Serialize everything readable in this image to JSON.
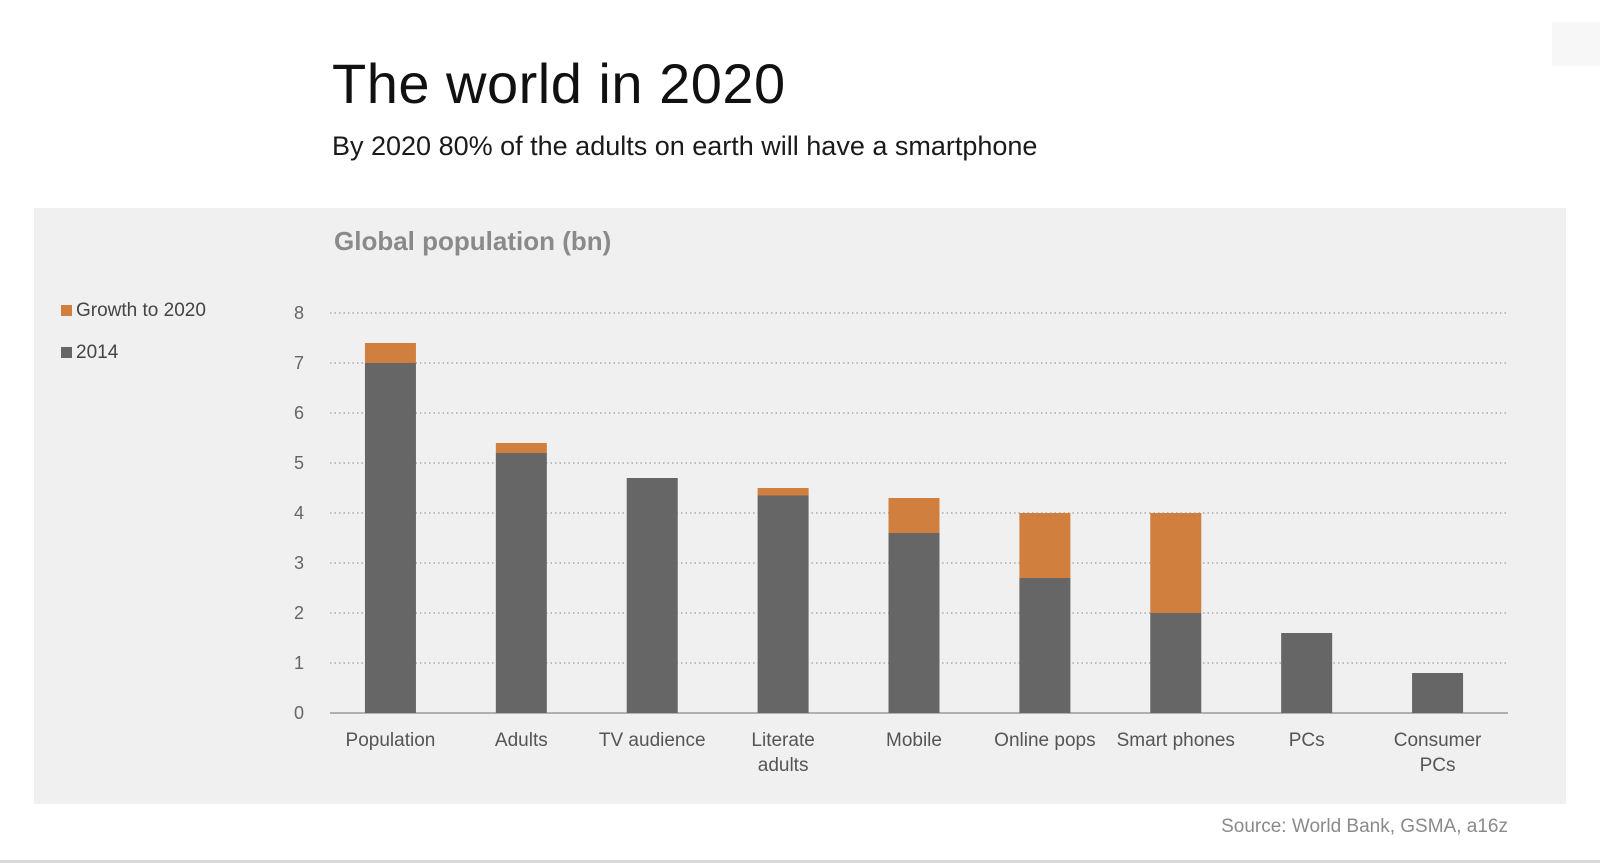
{
  "slide": {
    "title": "The world in 2020",
    "subtitle": "By 2020 80% of the adults on earth will have a smartphone",
    "source": "Source: World Bank, GSMA, a16z"
  },
  "chart_data": {
    "type": "bar",
    "stacked": true,
    "title": "Global population (bn)",
    "categories": [
      "Population",
      "Adults",
      "TV audience",
      "Literate adults",
      "Mobile",
      "Online pops",
      "Smart phones",
      "PCs",
      "Consumer PCs"
    ],
    "category_lines": [
      [
        "Population"
      ],
      [
        "Adults"
      ],
      [
        "TV audience"
      ],
      [
        "Literate",
        "adults"
      ],
      [
        "Mobile"
      ],
      [
        "Online pops"
      ],
      [
        "Smart phones"
      ],
      [
        "PCs"
      ],
      [
        "Consumer",
        "PCs"
      ]
    ],
    "series": [
      {
        "name": "2014",
        "color": "#666666",
        "values": [
          7.0,
          5.2,
          4.7,
          4.35,
          3.6,
          2.7,
          2.0,
          1.6,
          0.8
        ]
      },
      {
        "name": "Growth to 2020",
        "color": "#d07f3e",
        "values": [
          0.4,
          0.2,
          0,
          0.15,
          0.7,
          1.3,
          2.0,
          0,
          0
        ]
      }
    ],
    "legend_order": [
      "Growth to 2020",
      "2014"
    ],
    "legend_position": "left",
    "ylim": [
      0,
      8
    ],
    "yticks": [
      0,
      1,
      2,
      3,
      4,
      5,
      6,
      7,
      8
    ],
    "grid": true,
    "gridline_style": "dotted",
    "xlabel": "",
    "ylabel": ""
  }
}
